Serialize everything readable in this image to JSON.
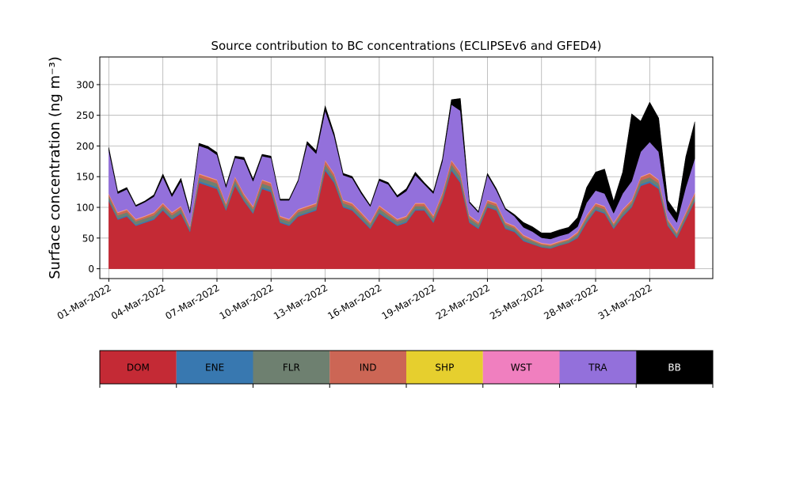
{
  "chart_data": {
    "type": "area",
    "title": "Source contribution to BC concentrations (ECLIPSEv6 and GFED4)",
    "ylabel": "Surface concentration (ng m⁻³)",
    "xlabel": "",
    "ylim": [
      -16,
      345
    ],
    "yticks": [
      0,
      50,
      100,
      150,
      200,
      250,
      300
    ],
    "xlim": [
      "2022-02-28T12:00",
      "2022-04-03T12:00"
    ],
    "xticks": [
      "01-Mar-2022",
      "04-Mar-2022",
      "07-Mar-2022",
      "10-Mar-2022",
      "13-Mar-2022",
      "16-Mar-2022",
      "19-Mar-2022",
      "22-Mar-2022",
      "25-Mar-2022",
      "28-Mar-2022",
      "31-Mar-2022"
    ],
    "grid": true,
    "stacked": true,
    "legend_position": "below",
    "x": [
      "2022-03-01T00:00",
      "2022-03-01T12:00",
      "2022-03-02T00:00",
      "2022-03-02T12:00",
      "2022-03-03T00:00",
      "2022-03-03T12:00",
      "2022-03-04T00:00",
      "2022-03-04T12:00",
      "2022-03-05T00:00",
      "2022-03-05T12:00",
      "2022-03-06T00:00",
      "2022-03-06T12:00",
      "2022-03-07T00:00",
      "2022-03-07T12:00",
      "2022-03-08T00:00",
      "2022-03-08T12:00",
      "2022-03-09T00:00",
      "2022-03-09T12:00",
      "2022-03-10T00:00",
      "2022-03-10T12:00",
      "2022-03-11T00:00",
      "2022-03-11T12:00",
      "2022-03-12T00:00",
      "2022-03-12T12:00",
      "2022-03-13T00:00",
      "2022-03-13T12:00",
      "2022-03-14T00:00",
      "2022-03-14T12:00",
      "2022-03-15T00:00",
      "2022-03-15T12:00",
      "2022-03-16T00:00",
      "2022-03-16T12:00",
      "2022-03-17T00:00",
      "2022-03-17T12:00",
      "2022-03-18T00:00",
      "2022-03-18T12:00",
      "2022-03-19T00:00",
      "2022-03-19T12:00",
      "2022-03-20T00:00",
      "2022-03-20T12:00",
      "2022-03-21T00:00",
      "2022-03-21T12:00",
      "2022-03-22T00:00",
      "2022-03-22T12:00",
      "2022-03-23T00:00",
      "2022-03-23T12:00",
      "2022-03-24T00:00",
      "2022-03-24T12:00",
      "2022-03-25T00:00",
      "2022-03-25T12:00",
      "2022-03-26T00:00",
      "2022-03-26T12:00",
      "2022-03-27T00:00",
      "2022-03-27T12:00",
      "2022-03-28T00:00",
      "2022-03-28T12:00",
      "2022-03-29T00:00",
      "2022-03-29T12:00",
      "2022-03-30T00:00",
      "2022-03-30T12:00",
      "2022-03-31T00:00",
      "2022-03-31T12:00",
      "2022-04-01T00:00",
      "2022-04-01T12:00",
      "2022-04-02T00:00",
      "2022-04-02T12:00"
    ],
    "series": [
      {
        "name": "DOM",
        "color": "#c42a35",
        "values": [
          110,
          80,
          85,
          70,
          75,
          80,
          95,
          80,
          90,
          60,
          140,
          135,
          130,
          95,
          135,
          110,
          90,
          130,
          125,
          75,
          70,
          85,
          90,
          95,
          160,
          140,
          100,
          95,
          80,
          65,
          90,
          80,
          70,
          75,
          95,
          95,
          75,
          110,
          160,
          140,
          75,
          65,
          100,
          95,
          65,
          60,
          45,
          40,
          35,
          33,
          38,
          42,
          50,
          75,
          95,
          90,
          65,
          85,
          100,
          135,
          140,
          130,
          70,
          50,
          80,
          110
        ]
      },
      {
        "name": "ENE",
        "color": "#3878b0",
        "values": [
          2,
          2,
          2,
          2,
          2,
          2,
          2,
          2,
          2,
          2,
          3,
          3,
          3,
          2,
          3,
          2,
          2,
          3,
          3,
          2,
          2,
          2,
          2,
          2,
          3,
          3,
          2,
          2,
          2,
          2,
          2,
          2,
          2,
          2,
          2,
          2,
          2,
          2,
          3,
          3,
          2,
          2,
          2,
          2,
          2,
          2,
          2,
          1,
          1,
          1,
          1,
          1,
          2,
          2,
          2,
          2,
          2,
          2,
          2,
          3,
          3,
          3,
          2,
          2,
          2,
          2
        ]
      },
      {
        "name": "FLR",
        "color": "#6e8070",
        "values": [
          5,
          5,
          5,
          5,
          5,
          5,
          5,
          5,
          5,
          4,
          6,
          6,
          6,
          5,
          6,
          5,
          5,
          6,
          6,
          5,
          5,
          5,
          5,
          5,
          7,
          6,
          5,
          5,
          5,
          5,
          6,
          5,
          5,
          5,
          5,
          5,
          5,
          6,
          7,
          7,
          5,
          5,
          5,
          5,
          5,
          4,
          4,
          4,
          3,
          3,
          3,
          3,
          4,
          5,
          5,
          5,
          4,
          5,
          5,
          6,
          6,
          6,
          5,
          4,
          5,
          6
        ]
      },
      {
        "name": "IND",
        "color": "#cc6655",
        "values": [
          4,
          4,
          4,
          3,
          3,
          4,
          4,
          4,
          4,
          3,
          5,
          5,
          5,
          4,
          5,
          4,
          4,
          5,
          5,
          3,
          3,
          4,
          4,
          4,
          6,
          5,
          4,
          4,
          4,
          3,
          4,
          4,
          3,
          3,
          4,
          4,
          4,
          5,
          6,
          6,
          4,
          3,
          4,
          4,
          3,
          3,
          3,
          2,
          2,
          2,
          2,
          2,
          3,
          4,
          4,
          4,
          3,
          4,
          4,
          5,
          6,
          5,
          3,
          3,
          4,
          5
        ]
      },
      {
        "name": "SHP",
        "color": "#e6cf2e",
        "values": [
          0.5,
          0.5,
          0.5,
          0.5,
          0.5,
          0.5,
          0.5,
          0.5,
          0.5,
          0.5,
          0.5,
          0.5,
          0.5,
          0.5,
          0.5,
          0.5,
          0.5,
          0.5,
          0.5,
          0.5,
          0.5,
          0.5,
          0.5,
          0.5,
          0.5,
          0.5,
          0.5,
          0.5,
          0.5,
          0.5,
          0.5,
          0.5,
          0.5,
          0.5,
          0.5,
          0.5,
          0.5,
          0.5,
          0.5,
          0.5,
          0.5,
          0.5,
          0.5,
          0.5,
          0.5,
          0.5,
          0.5,
          0.5,
          0.5,
          0.5,
          0.5,
          0.5,
          0.5,
          0.5,
          0.5,
          0.5,
          0.5,
          0.5,
          0.5,
          0.5,
          0.5,
          0.5,
          0.5,
          0.5,
          0.5,
          0.5
        ]
      },
      {
        "name": "WST",
        "color": "#f07fbf",
        "values": [
          1,
          1,
          1,
          1,
          1,
          1,
          1,
          1,
          1,
          1,
          1,
          1,
          1,
          1,
          1,
          1,
          1,
          1,
          1,
          1,
          1,
          1,
          1,
          1,
          1,
          1,
          1,
          1,
          1,
          1,
          1,
          1,
          1,
          1,
          1,
          1,
          1,
          1,
          1,
          1,
          1,
          1,
          1,
          1,
          1,
          1,
          1,
          1,
          1,
          1,
          1,
          1,
          1,
          1,
          1,
          1,
          1,
          1,
          1,
          1,
          1,
          1,
          1,
          1,
          1,
          1
        ]
      },
      {
        "name": "TRA",
        "color": "#9370db",
        "values": [
          70,
          30,
          32,
          20,
          22,
          25,
          42,
          25,
          40,
          20,
          45,
          45,
          40,
          25,
          30,
          55,
          40,
          38,
          40,
          25,
          30,
          45,
          100,
          80,
          80,
          60,
          40,
          40,
          30,
          25,
          40,
          45,
          35,
          40,
          45,
          30,
          35,
          50,
          90,
          100,
          20,
          15,
          40,
          20,
          20,
          15,
          12,
          12,
          8,
          8,
          8,
          8,
          8,
          20,
          20,
          20,
          15,
          25,
          30,
          40,
          50,
          45,
          15,
          15,
          40,
          55
        ]
      },
      {
        "name": "BB",
        "color": "#000000",
        "values": [
          5,
          3,
          3,
          2,
          2,
          3,
          5,
          4,
          5,
          3,
          4,
          4,
          4,
          3,
          3,
          4,
          4,
          3,
          3,
          2,
          2,
          2,
          5,
          5,
          8,
          5,
          3,
          3,
          3,
          2,
          3,
          3,
          3,
          4,
          5,
          3,
          3,
          4,
          8,
          20,
          2,
          2,
          3,
          3,
          2,
          3,
          8,
          8,
          8,
          10,
          10,
          10,
          15,
          25,
          30,
          40,
          20,
          35,
          110,
          50,
          65,
          55,
          15,
          15,
          50,
          60
        ]
      }
    ]
  }
}
